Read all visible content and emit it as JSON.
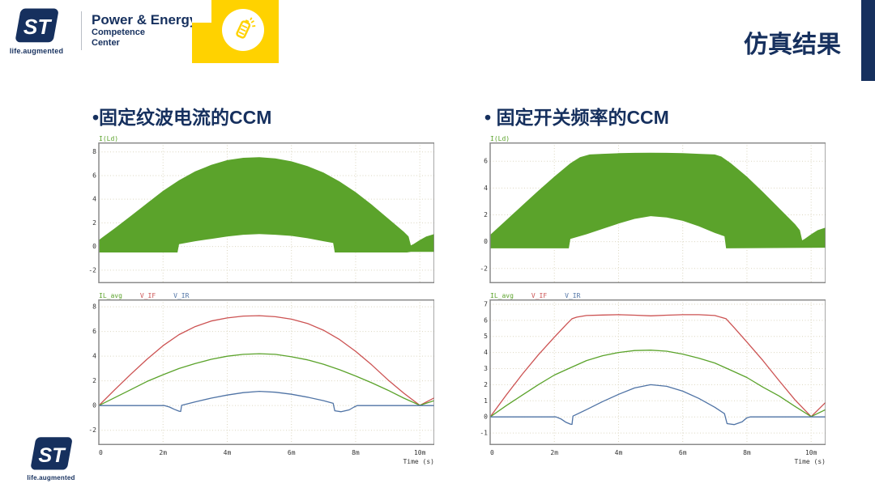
{
  "colors": {
    "navy": "#16305e",
    "yellow": "#ffd200",
    "green": "#5ba32b",
    "red": "#cc5252",
    "blue": "#4f73a5",
    "grid": "#dbd6c0",
    "border": "#8c8c8c"
  },
  "header": {
    "brand": {
      "logo_text": "ST",
      "tagline": "life.augmented",
      "org_line1": "Power & Energy",
      "org_line2": "Competence",
      "org_line3": "Center"
    },
    "title": "仿真结果"
  },
  "footer": {
    "logo_text": "ST",
    "tagline": "life.augmented"
  },
  "columns": [
    {
      "heading": "•固定纹波电流的CCM"
    },
    {
      "heading": "• 固定开关频率的CCM"
    }
  ],
  "chart_data": [
    {
      "id": "left-top",
      "type": "area",
      "legend": [
        {
          "text": "I(Ld)",
          "color": "green"
        }
      ],
      "ymin": -3.1,
      "ymax": 8.8,
      "xmax": 10.45,
      "y_ticks": [
        8,
        6,
        4,
        2,
        0,
        -2
      ],
      "x_ticks": [
        {
          "v": 0,
          "label": "0"
        },
        {
          "v": 2,
          "label": "2m"
        },
        {
          "v": 4,
          "label": "4m"
        },
        {
          "v": 6,
          "label": "6m"
        },
        {
          "v": 8,
          "label": "8m"
        },
        {
          "v": 10,
          "label": "10m"
        }
      ],
      "x_labels_visible": false,
      "xlabel": "Time (s)",
      "envelope": {
        "upper": [
          [
            0,
            0.55
          ],
          [
            0.5,
            1.55
          ],
          [
            1,
            2.6
          ],
          [
            1.5,
            3.65
          ],
          [
            2,
            4.7
          ],
          [
            2.5,
            5.6
          ],
          [
            3,
            6.35
          ],
          [
            3.5,
            6.9
          ],
          [
            4,
            7.3
          ],
          [
            4.5,
            7.5
          ],
          [
            5,
            7.55
          ],
          [
            5.5,
            7.45
          ],
          [
            6,
            7.2
          ],
          [
            6.5,
            6.8
          ],
          [
            7,
            6.25
          ],
          [
            7.5,
            5.5
          ],
          [
            8,
            4.6
          ],
          [
            8.5,
            3.55
          ],
          [
            9,
            2.4
          ],
          [
            9.5,
            1.25
          ],
          [
            9.65,
            0.85
          ],
          [
            9.72,
            0.1
          ],
          [
            9.8,
            0.2
          ],
          [
            10,
            0.55
          ],
          [
            10.2,
            0.85
          ],
          [
            10.45,
            1.05
          ]
        ],
        "lower": [
          [
            0,
            -0.5
          ],
          [
            2.45,
            -0.5
          ],
          [
            2.5,
            0.2
          ],
          [
            3,
            0.45
          ],
          [
            3.5,
            0.65
          ],
          [
            4,
            0.85
          ],
          [
            4.5,
            1.0
          ],
          [
            5,
            1.05
          ],
          [
            5.5,
            1.0
          ],
          [
            6,
            0.9
          ],
          [
            6.5,
            0.7
          ],
          [
            7,
            0.45
          ],
          [
            7.3,
            0.3
          ],
          [
            7.35,
            -0.5
          ],
          [
            9.6,
            -0.5
          ],
          [
            9.72,
            -0.45
          ],
          [
            10.45,
            -0.45
          ]
        ]
      }
    },
    {
      "id": "left-bottom",
      "type": "line",
      "legend": [
        {
          "text": "IL_avg",
          "color": "green"
        },
        {
          "text": "V_IF",
          "color": "red"
        },
        {
          "text": "V_IR",
          "color": "blue"
        }
      ],
      "ymin": -3.2,
      "ymax": 8.6,
      "xmax": 10.45,
      "y_ticks": [
        8,
        6,
        4,
        2,
        0,
        -2
      ],
      "x_ticks": [
        {
          "v": 0,
          "label": "0"
        },
        {
          "v": 2,
          "label": "2m"
        },
        {
          "v": 4,
          "label": "4m"
        },
        {
          "v": 6,
          "label": "6m"
        },
        {
          "v": 8,
          "label": "8m"
        },
        {
          "v": 10,
          "label": "10m"
        }
      ],
      "x_labels_visible": true,
      "xlabel": "Time (s)",
      "series": [
        {
          "name": "V_IF",
          "color": "red",
          "points": [
            [
              0,
              0
            ],
            [
              0.5,
              1.3
            ],
            [
              1,
              2.55
            ],
            [
              1.5,
              3.75
            ],
            [
              2,
              4.85
            ],
            [
              2.5,
              5.75
            ],
            [
              3,
              6.4
            ],
            [
              3.5,
              6.85
            ],
            [
              4,
              7.1
            ],
            [
              4.5,
              7.25
            ],
            [
              5,
              7.28
            ],
            [
              5.5,
              7.2
            ],
            [
              6,
              7.0
            ],
            [
              6.5,
              6.65
            ],
            [
              7,
              6.1
            ],
            [
              7.5,
              5.35
            ],
            [
              8,
              4.4
            ],
            [
              8.5,
              3.3
            ],
            [
              9,
              2.1
            ],
            [
              9.5,
              1.0
            ],
            [
              10,
              0.02
            ],
            [
              10.45,
              0.62
            ]
          ]
        },
        {
          "name": "IL_avg",
          "color": "green",
          "points": [
            [
              0,
              0
            ],
            [
              0.5,
              0.65
            ],
            [
              1,
              1.3
            ],
            [
              1.5,
              1.95
            ],
            [
              2,
              2.5
            ],
            [
              2.5,
              3.0
            ],
            [
              3,
              3.4
            ],
            [
              3.5,
              3.75
            ],
            [
              4,
              4.0
            ],
            [
              4.5,
              4.15
            ],
            [
              5,
              4.2
            ],
            [
              5.5,
              4.15
            ],
            [
              6,
              3.95
            ],
            [
              6.5,
              3.7
            ],
            [
              7,
              3.35
            ],
            [
              7.5,
              2.9
            ],
            [
              8,
              2.4
            ],
            [
              8.5,
              1.85
            ],
            [
              9,
              1.25
            ],
            [
              9.5,
              0.6
            ],
            [
              10,
              0.02
            ],
            [
              10.45,
              0.4
            ]
          ]
        },
        {
          "name": "V_IR",
          "color": "blue",
          "points": [
            [
              0,
              0
            ],
            [
              2.05,
              0
            ],
            [
              2.2,
              -0.12
            ],
            [
              2.35,
              -0.3
            ],
            [
              2.5,
              -0.45
            ],
            [
              2.55,
              -0.48
            ],
            [
              2.58,
              0.02
            ],
            [
              3,
              0.3
            ],
            [
              3.5,
              0.6
            ],
            [
              4,
              0.85
            ],
            [
              4.5,
              1.05
            ],
            [
              5,
              1.15
            ],
            [
              5.5,
              1.08
            ],
            [
              6,
              0.92
            ],
            [
              6.5,
              0.68
            ],
            [
              7,
              0.4
            ],
            [
              7.3,
              0.18
            ],
            [
              7.35,
              -0.42
            ],
            [
              7.55,
              -0.5
            ],
            [
              7.8,
              -0.35
            ],
            [
              7.95,
              -0.12
            ],
            [
              8.05,
              0
            ],
            [
              10.45,
              0
            ]
          ]
        }
      ]
    },
    {
      "id": "right-top",
      "type": "area",
      "legend": [
        {
          "text": "I(Ld)",
          "color": "green"
        }
      ],
      "ymin": -3.1,
      "ymax": 7.4,
      "xmax": 10.45,
      "y_ticks": [
        6,
        4,
        2,
        0,
        -2
      ],
      "x_ticks": [
        {
          "v": 0,
          "label": "0"
        },
        {
          "v": 2,
          "label": "2m"
        },
        {
          "v": 4,
          "label": "4m"
        },
        {
          "v": 6,
          "label": "6m"
        },
        {
          "v": 8,
          "label": "8m"
        },
        {
          "v": 10,
          "label": "10m"
        }
      ],
      "x_labels_visible": false,
      "xlabel": "Time (s)",
      "envelope": {
        "upper": [
          [
            0,
            0.5
          ],
          [
            0.5,
            1.6
          ],
          [
            1,
            2.7
          ],
          [
            1.5,
            3.8
          ],
          [
            2,
            4.85
          ],
          [
            2.5,
            5.85
          ],
          [
            2.8,
            6.3
          ],
          [
            3.1,
            6.5
          ],
          [
            3.5,
            6.55
          ],
          [
            4,
            6.6
          ],
          [
            4.5,
            6.62
          ],
          [
            5,
            6.63
          ],
          [
            5.5,
            6.62
          ],
          [
            6,
            6.6
          ],
          [
            6.5,
            6.55
          ],
          [
            7,
            6.5
          ],
          [
            7.2,
            6.35
          ],
          [
            7.5,
            5.85
          ],
          [
            8,
            4.85
          ],
          [
            8.5,
            3.7
          ],
          [
            9,
            2.5
          ],
          [
            9.5,
            1.3
          ],
          [
            9.65,
            0.85
          ],
          [
            9.72,
            0.1
          ],
          [
            9.8,
            0.2
          ],
          [
            10,
            0.55
          ],
          [
            10.2,
            0.85
          ],
          [
            10.45,
            1.05
          ]
        ],
        "lower": [
          [
            0,
            -0.5
          ],
          [
            2.45,
            -0.5
          ],
          [
            2.5,
            0.2
          ],
          [
            3,
            0.55
          ],
          [
            3.5,
            0.95
          ],
          [
            4,
            1.35
          ],
          [
            4.5,
            1.7
          ],
          [
            5,
            1.9
          ],
          [
            5.5,
            1.8
          ],
          [
            6,
            1.55
          ],
          [
            6.5,
            1.15
          ],
          [
            7,
            0.65
          ],
          [
            7.3,
            0.4
          ],
          [
            7.35,
            -0.5
          ],
          [
            10.45,
            -0.45
          ]
        ]
      }
    },
    {
      "id": "right-bottom",
      "type": "line",
      "legend": [
        {
          "text": "IL_avg",
          "color": "green"
        },
        {
          "text": "V_IF",
          "color": "red"
        },
        {
          "text": "V_IR",
          "color": "blue"
        }
      ],
      "ymin": -1.75,
      "ymax": 7.3,
      "xmax": 10.45,
      "y_ticks": [
        7,
        6,
        5,
        4,
        3,
        2,
        1,
        0,
        -1
      ],
      "x_ticks": [
        {
          "v": 0,
          "label": "0"
        },
        {
          "v": 2,
          "label": "2m"
        },
        {
          "v": 4,
          "label": "4m"
        },
        {
          "v": 6,
          "label": "6m"
        },
        {
          "v": 8,
          "label": "8m"
        },
        {
          "v": 10,
          "label": "10m"
        }
      ],
      "x_labels_visible": true,
      "xlabel": "Time (s)",
      "series": [
        {
          "name": "V_IF",
          "color": "red",
          "points": [
            [
              0,
              0
            ],
            [
              0.5,
              1.35
            ],
            [
              1,
              2.65
            ],
            [
              1.5,
              3.85
            ],
            [
              2,
              4.95
            ],
            [
              2.4,
              5.8
            ],
            [
              2.55,
              6.1
            ],
            [
              2.7,
              6.2
            ],
            [
              3,
              6.3
            ],
            [
              3.5,
              6.33
            ],
            [
              4,
              6.35
            ],
            [
              4.5,
              6.32
            ],
            [
              5,
              6.28
            ],
            [
              5.5,
              6.32
            ],
            [
              6,
              6.35
            ],
            [
              6.5,
              6.35
            ],
            [
              7,
              6.3
            ],
            [
              7.35,
              6.1
            ],
            [
              7.6,
              5.55
            ],
            [
              8,
              4.65
            ],
            [
              8.5,
              3.5
            ],
            [
              9,
              2.25
            ],
            [
              9.5,
              1.05
            ],
            [
              10,
              0.02
            ],
            [
              10.45,
              0.9
            ]
          ]
        },
        {
          "name": "IL_avg",
          "color": "green",
          "points": [
            [
              0,
              0
            ],
            [
              0.5,
              0.7
            ],
            [
              1,
              1.35
            ],
            [
              1.5,
              2.0
            ],
            [
              2,
              2.6
            ],
            [
              2.5,
              3.05
            ],
            [
              3,
              3.5
            ],
            [
              3.5,
              3.8
            ],
            [
              4,
              4.0
            ],
            [
              4.5,
              4.12
            ],
            [
              5,
              4.15
            ],
            [
              5.5,
              4.08
            ],
            [
              6,
              3.9
            ],
            [
              6.5,
              3.65
            ],
            [
              7,
              3.35
            ],
            [
              7.5,
              2.9
            ],
            [
              8,
              2.45
            ],
            [
              8.5,
              1.85
            ],
            [
              9,
              1.3
            ],
            [
              9.5,
              0.65
            ],
            [
              10,
              0.02
            ],
            [
              10.45,
              0.45
            ]
          ]
        },
        {
          "name": "V_IR",
          "color": "blue",
          "points": [
            [
              0,
              0
            ],
            [
              2.05,
              0
            ],
            [
              2.2,
              -0.12
            ],
            [
              2.35,
              -0.32
            ],
            [
              2.5,
              -0.45
            ],
            [
              2.55,
              -0.47
            ],
            [
              2.58,
              0.05
            ],
            [
              3,
              0.45
            ],
            [
              3.5,
              0.95
            ],
            [
              4,
              1.4
            ],
            [
              4.5,
              1.8
            ],
            [
              5,
              2.0
            ],
            [
              5.5,
              1.9
            ],
            [
              6,
              1.6
            ],
            [
              6.5,
              1.15
            ],
            [
              7,
              0.6
            ],
            [
              7.3,
              0.2
            ],
            [
              7.38,
              -0.42
            ],
            [
              7.6,
              -0.48
            ],
            [
              7.85,
              -0.3
            ],
            [
              8.0,
              -0.05
            ],
            [
              8.1,
              0
            ],
            [
              10.45,
              0
            ]
          ]
        }
      ]
    }
  ]
}
